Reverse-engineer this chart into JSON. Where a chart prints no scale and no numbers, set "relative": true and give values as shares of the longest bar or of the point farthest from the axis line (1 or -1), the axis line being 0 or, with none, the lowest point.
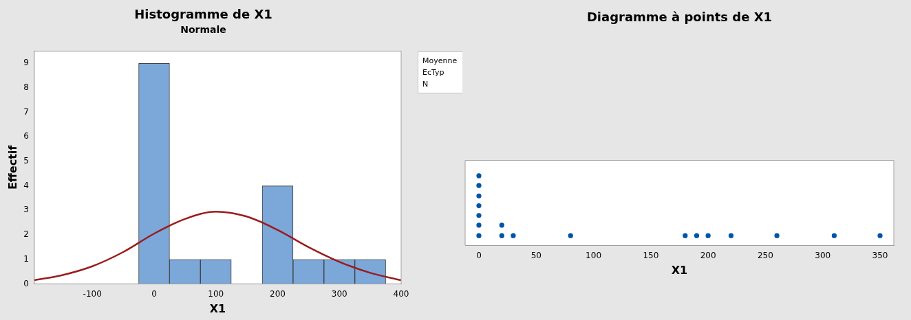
{
  "chart_data": [
    {
      "type": "histogram",
      "title": "Histogramme de X1",
      "subtitle": "Normale",
      "xlabel": "X1",
      "ylabel": "Effectif",
      "bins": [
        -25,
        25,
        75,
        125,
        175,
        225,
        275,
        325,
        375
      ],
      "values": [
        9,
        1,
        1,
        0,
        4,
        1,
        1,
        1
      ],
      "color": "#7ba7d9",
      "series": [
        {
          "type": "line",
          "color": "#9b1c1c",
          "x": [
            -194,
            -150,
            -100,
            -50,
            0,
            50,
            100,
            150,
            200,
            250,
            300,
            350,
            400
          ],
          "values": [
            0.15,
            0.35,
            0.72,
            1.3,
            2.05,
            2.65,
            2.95,
            2.75,
            2.2,
            1.5,
            0.9,
            0.45,
            0.15
          ]
        }
      ],
      "xlim": [
        -194,
        400
      ],
      "xticks": [
        -100,
        0,
        100,
        200,
        300,
        400
      ],
      "ylim": [
        0,
        9.5
      ],
      "yticks": [
        0,
        1,
        2,
        3,
        4,
        5,
        6,
        7,
        8,
        9
      ],
      "annotations": [
        "Moyenne",
        "EcTyp",
        "N"
      ]
    },
    {
      "type": "scatter",
      "title": "Diagramme à points de X1",
      "xlabel": "X1",
      "relative": true,
      "marker": "circle",
      "tick_labels": "x",
      "color": "#0054a6",
      "x": [
        0,
        0,
        0,
        0,
        0,
        0,
        0,
        20,
        20,
        30,
        80,
        180,
        190,
        200,
        220,
        260,
        310,
        350
      ],
      "values": [
        0.14,
        0.29,
        0.43,
        0.57,
        0.71,
        0.86,
        1,
        0.14,
        0.29,
        0.14,
        0.14,
        0.14,
        0.14,
        0.14,
        0.14,
        0.14,
        0.14,
        0.14
      ],
      "xlim": [
        -12,
        362
      ],
      "xticks": [
        0,
        50,
        100,
        150,
        200,
        250,
        300,
        350
      ]
    }
  ]
}
